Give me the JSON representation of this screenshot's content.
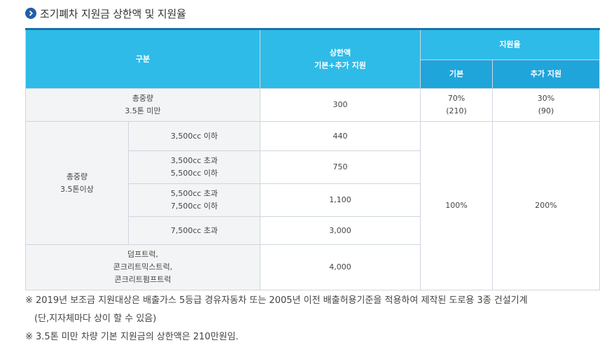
{
  "heading": {
    "title": "조기폐차 지원금 상한액 및 지원율",
    "icon": "chevron-right-icon"
  },
  "table": {
    "headers": {
      "category": "구분",
      "limit_line1": "상한액",
      "limit_line2": "기본+추가 지원",
      "rate": "지원율",
      "rate_basic": "기본",
      "rate_extra": "추가 지원"
    },
    "row_under35": {
      "label_line1": "총중량",
      "label_line2": "3.5톤 미만",
      "limit": "300",
      "basic_line1": "70%",
      "basic_line2": "(210)",
      "extra_line1": "30%",
      "extra_line2": "(90)"
    },
    "group_over35": {
      "label_line1": "총중량",
      "label_line2": "3.5톤이상",
      "rows": [
        {
          "line1": "3,500cc 이하",
          "line2": "",
          "limit": "440"
        },
        {
          "line1": "3,500cc 초과",
          "line2": "5,500cc 이하",
          "limit": "750"
        },
        {
          "line1": "5,500cc 초과",
          "line2": "7,500cc 이하",
          "limit": "1,100"
        },
        {
          "line1": "7,500cc 초과",
          "line2": "",
          "limit": "3,000"
        }
      ],
      "basic": "100%",
      "extra": "200%"
    },
    "row_special": {
      "line1": "덤프트럭,",
      "line2": "콘크리트믹스트럭,",
      "line3": "콘크리트펌프트럭",
      "limit": "4,000"
    }
  },
  "notes": {
    "note1": "※ 2019년 보조금 지원대상은 배출가스 5등급 경유자동차 또는 2005년 이전 배출허용기준을 적용하여 제작된 도로용 3종 건설기계",
    "note1_cont": "(단,지자체마다 상이 할 수 있음)",
    "note2": "※ 3.5톤 미만 차량 기본 지원금의 상한액은 210만원임."
  },
  "colors": {
    "header": "#2ebbe8",
    "header_sub": "#1fa5da",
    "accent": "#1a73a9",
    "shade": "#f3f4f5"
  }
}
